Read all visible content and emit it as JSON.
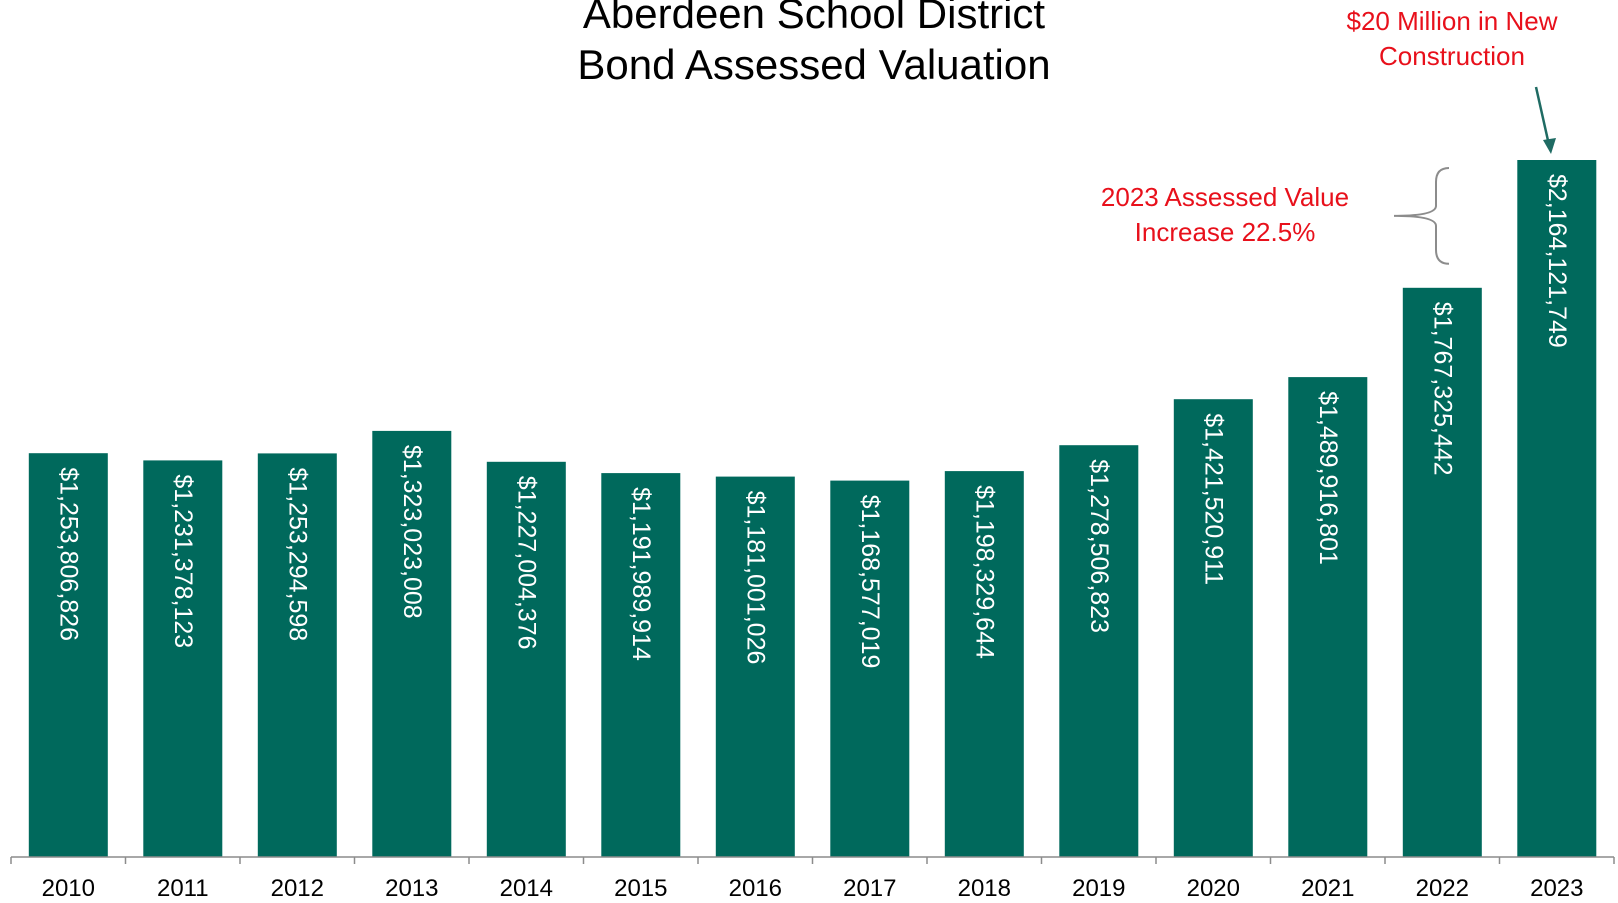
{
  "colors": {
    "bar": "#00695c",
    "annotation_text": "#e8101b",
    "arrow": "#1f6b63",
    "axis": "#8c8c8c",
    "brace": "#8c8c8c"
  },
  "chart_data": {
    "type": "bar",
    "title_lines": [
      "Aberdeen School District",
      "Bond Assessed Valuation"
    ],
    "categories": [
      "2010",
      "2011",
      "2012",
      "2013",
      "2014",
      "2015",
      "2016",
      "2017",
      "2018",
      "2019",
      "2020",
      "2021",
      "2022",
      "2023"
    ],
    "values": [
      1253806826,
      1231378123,
      1253294598,
      1323023008,
      1227004376,
      1191989914,
      1181001026,
      1168577019,
      1198329644,
      1278506823,
      1421520911,
      1489916801,
      1767325442,
      2164121749
    ],
    "data_labels": [
      "$1,253,806,826",
      "$1,231,378,123",
      "$1,253,294,598",
      "$1,323,023,008",
      "$1,227,004,376",
      "$1,191,989,914",
      "$1,181,001,026",
      "$1,168,577,019",
      "$1,198,329,644",
      "$1,278,506,823",
      "$1,421,520,911",
      "$1,489,916,801",
      "$1,767,325,442",
      "$2,164,121,749"
    ],
    "ylim": [
      0,
      2164121749
    ],
    "grid": false,
    "annotations": [
      {
        "lines": [
          "$20 Million in New",
          "Construction"
        ],
        "target_category": "2023"
      },
      {
        "lines": [
          "2023 Assessed Value",
          "Increase 22.5%"
        ],
        "from_category": "2022",
        "to_category": "2023"
      }
    ]
  }
}
